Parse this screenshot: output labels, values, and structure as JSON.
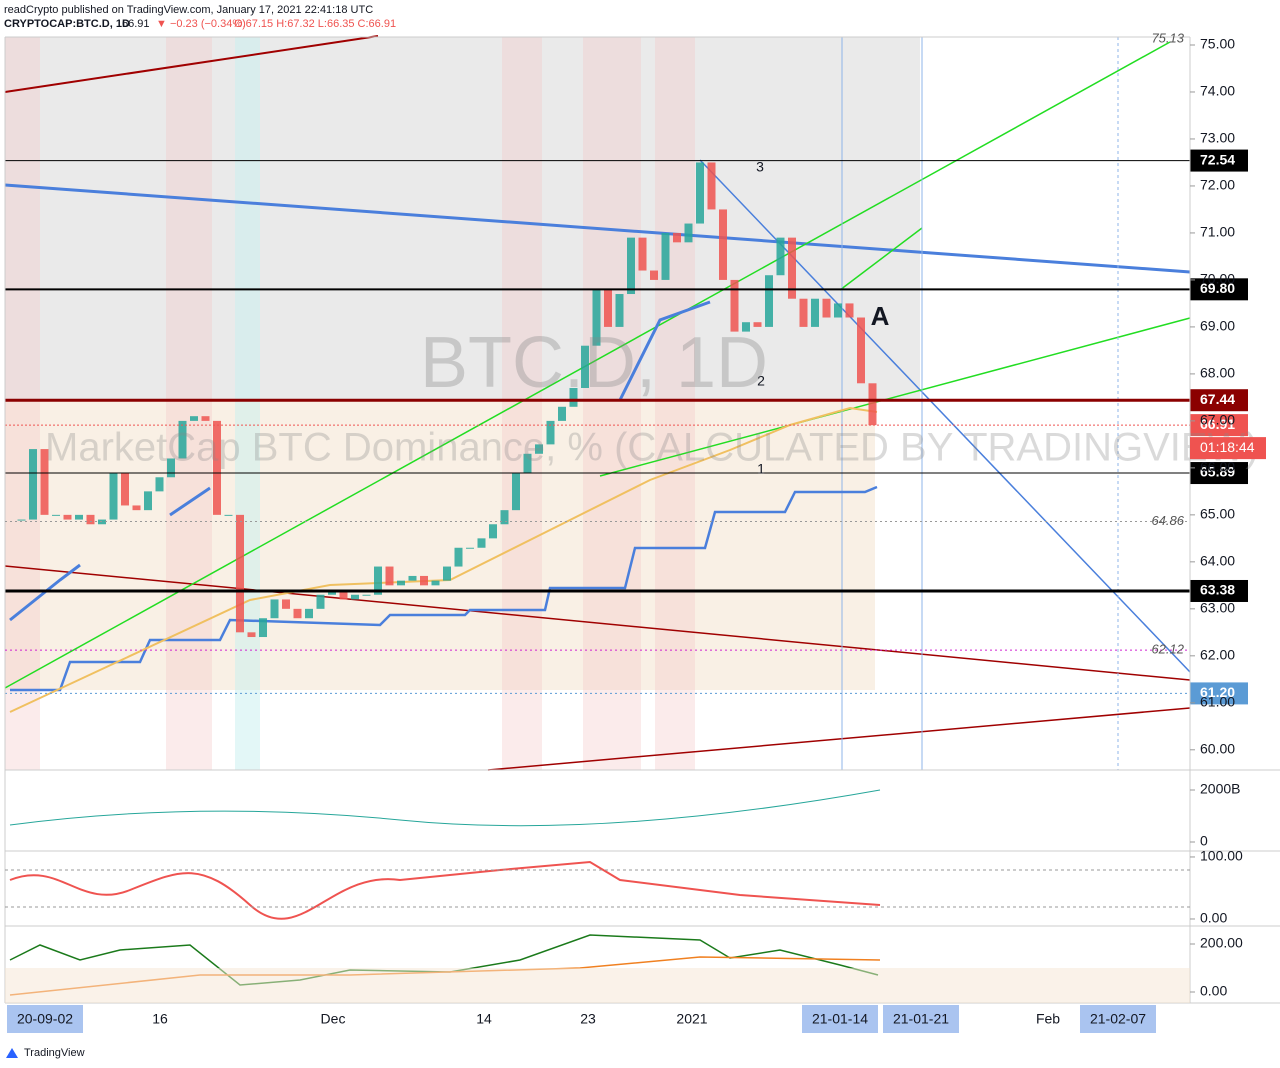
{
  "header": {
    "publisher": "readCrypto published on TradingView.com, January 17, 2021 22:41:18 UTC",
    "symbol": "CRYPTOCAP:BTC.D, 1D",
    "last": "66.91",
    "change": "▼ −0.23 (−0.34%)",
    "ohlc": "O:67.15 H:67.32 L:66.35 C:66.91"
  },
  "chart_data": {
    "type": "candlestick",
    "watermark_symbol": "BTC.D, 1D",
    "watermark_name": "MarketCap BTC Dominance, % (CALCULATED BY TRADINGVIEW)",
    "up_color": "#26a69a",
    "down_color": "#ef5350",
    "closes": [
      64.9,
      64.9,
      66.4,
      65.0,
      65.0,
      64.9,
      65.0,
      64.8,
      64.9,
      65.9,
      65.2,
      65.1,
      65.5,
      65.8,
      66.2,
      67.0,
      67.1,
      67.0,
      65.0,
      65.0,
      62.5,
      62.4,
      62.8,
      63.2,
      63.0,
      62.8,
      63.0,
      63.3,
      63.4,
      63.2,
      63.3,
      63.3,
      63.9,
      63.5,
      63.6,
      63.7,
      63.5,
      63.6,
      63.9,
      64.3,
      64.3,
      64.5,
      64.8,
      65.1,
      65.9,
      66.3,
      66.5,
      67.0,
      67.3,
      67.7,
      68.6,
      69.8,
      69.0,
      69.7,
      70.9,
      70.2,
      70.0,
      71.0,
      70.8,
      71.2,
      72.5,
      71.5,
      70.0,
      68.9,
      69.1,
      69.0,
      70.1,
      70.9,
      69.6,
      69.0,
      69.6,
      69.2,
      69.5,
      69.2,
      67.8,
      66.91
    ],
    "ylim": [
      59.57,
      75.17
    ],
    "yticks": [
      {
        "value": 60,
        "label": "60.00"
      },
      {
        "value": 61,
        "label": "61.00"
      },
      {
        "value": 62,
        "label": "62.00"
      },
      {
        "value": 63,
        "label": "63.00"
      },
      {
        "value": 64,
        "label": "64.00"
      },
      {
        "value": 65,
        "label": "65.00"
      },
      {
        "value": 66,
        "label": "66.00"
      },
      {
        "value": 67,
        "label": "67.00"
      },
      {
        "value": 68,
        "label": "68.00"
      },
      {
        "value": 69,
        "label": "69.00"
      },
      {
        "value": 70,
        "label": "70.00"
      },
      {
        "value": 71,
        "label": "71.00"
      },
      {
        "value": 72,
        "label": "72.00"
      },
      {
        "value": 73,
        "label": "73.00"
      },
      {
        "value": 74,
        "label": "74.00"
      },
      {
        "value": 75,
        "label": "75.00"
      }
    ],
    "price_levels": [
      {
        "value": 72.54,
        "color": "#000000"
      },
      {
        "value": 69.8,
        "label": "69.80",
        "color": "#000000"
      },
      {
        "value": 67.44,
        "color": "#8b0000"
      },
      {
        "value": 66.91,
        "color": "#ef5350"
      },
      {
        "value": 65.89,
        "color": "#000000"
      },
      {
        "value": 63.38,
        "color": "#000000"
      },
      {
        "value": 61.2,
        "label": "61.20",
        "color": "#5b9bd5"
      }
    ],
    "level_notes": [
      75.13,
      64.86,
      62.12
    ],
    "countdown": "01:18:44",
    "annotations": [
      "A",
      "1",
      "2",
      "3"
    ],
    "x_labels": [
      "20-09-02",
      "16",
      "Dec",
      "14",
      "23",
      "2021",
      "21-01-14",
      "21-01-21",
      "Feb",
      "21-02-07"
    ],
    "x_label_highlight": [
      true,
      false,
      false,
      false,
      false,
      false,
      true,
      true,
      false,
      true
    ]
  },
  "panes": [
    {
      "ylim": [
        -308,
        2692
      ],
      "yticks": [
        {
          "value": 2000,
          "label": "2000B"
        },
        0
      ]
    },
    {
      "ylim": [
        -9.7,
        108
      ],
      "yticks": [
        {
          "value": 100,
          "label": "100.00"
        },
        {
          "value": 0,
          "label": "0.00"
        }
      ]
    },
    {
      "ylim": [
        -45.8,
        270.8
      ],
      "yticks": [
        {
          "value": 200,
          "label": "200.00"
        },
        {
          "value": 0,
          "label": "0.00"
        }
      ]
    }
  ],
  "footer": "TradingView"
}
